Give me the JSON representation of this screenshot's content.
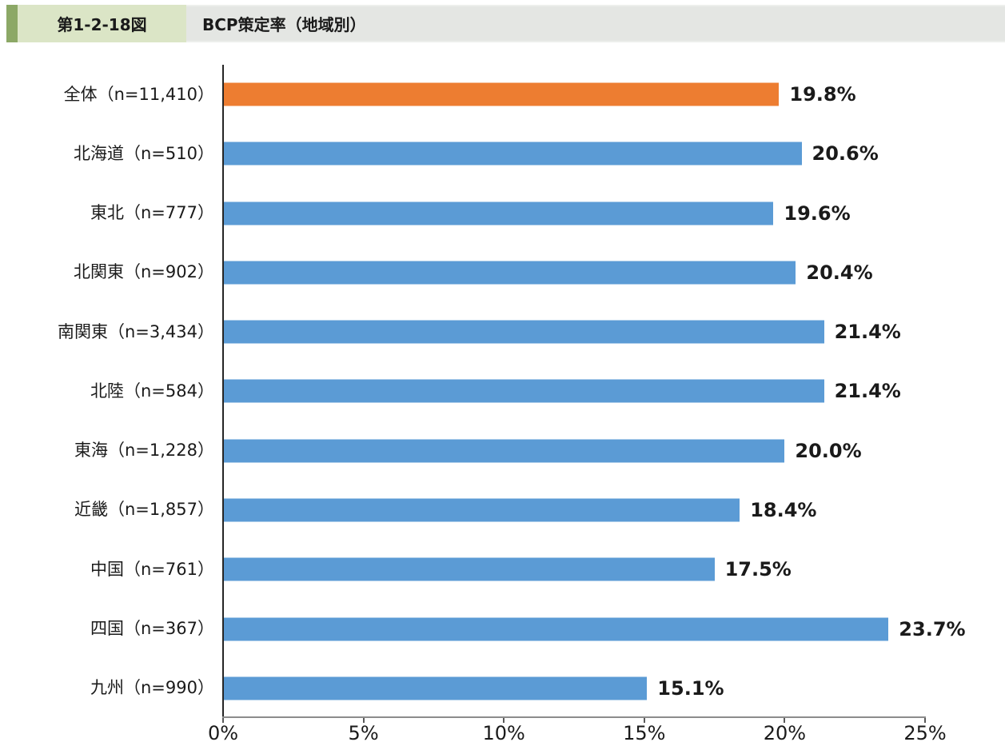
{
  "header": {
    "figure_label": "第1-2-18図",
    "title": "BCP策定率（地域別）"
  },
  "chart_data": {
    "type": "bar",
    "orientation": "horizontal",
    "title": "BCP策定率（地域別）",
    "categories": [
      "全体（n=11,410）",
      "北海道（n=510）",
      "東北（n=777）",
      "北関東（n=902）",
      "南関東（n=3,434）",
      "北陸（n=584）",
      "東海（n=1,228）",
      "近畿（n=1,857）",
      "中国（n=761）",
      "四国（n=367）",
      "九州（n=990）"
    ],
    "values": [
      19.8,
      20.6,
      19.6,
      20.4,
      21.4,
      21.4,
      20.0,
      18.4,
      17.5,
      23.7,
      15.1
    ],
    "value_labels": [
      "19.8%",
      "20.6%",
      "19.6%",
      "20.4%",
      "21.4%",
      "21.4%",
      "20.0%",
      "18.4%",
      "17.5%",
      "23.7%",
      "15.1%"
    ],
    "xlim": [
      0,
      25
    ],
    "x_ticks": [
      "0%",
      "5%",
      "10%",
      "15%",
      "20%",
      "25%"
    ],
    "grid": "off",
    "legend": "none",
    "highlight_index": 0,
    "colors": {
      "highlight": "#ED7D31",
      "default": "#5B9BD5",
      "header_accent": "#8CA866",
      "header_label_bg": "#DBE5C6",
      "header_band_bg": "#E4E6E3",
      "axis_line": "#8C8C8C"
    }
  }
}
